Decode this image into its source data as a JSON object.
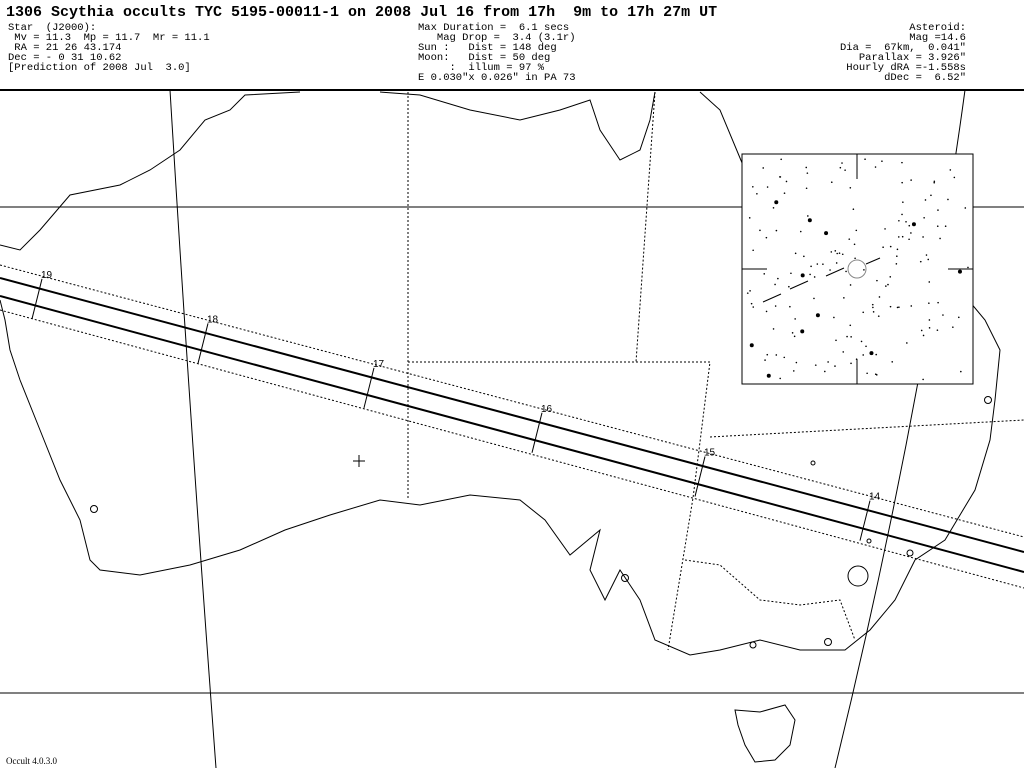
{
  "header": {
    "title": "1306 Scythia occults TYC 5195-00011-1 on 2008 Jul 16 from 17h  9m to 17h 27m UT",
    "star": [
      "Star  (J2000):",
      " Mv = 11.3  Mp = 11.7  Mr = 11.1",
      " RA = 21 26 43.174",
      "Dec = - 0 31 10.62",
      "[Prediction of 2008 Jul  3.0]"
    ],
    "event": [
      "Max Duration =  6.1 secs",
      "   Mag Drop =  3.4 (3.1r)",
      "Sun :   Dist = 148 deg",
      "Moon:   Dist = 50 deg",
      "     :  illum = 97 %",
      "E 0.030\"x 0.026\" in PA 73"
    ],
    "asteroid": [
      "Asteroid:",
      "   Mag =14.6",
      "   Dia =  67km,  0.041\"",
      "Parallax = 3.926\"",
      "Hourly dRA =-1.558s",
      "dDec =  6.52\""
    ]
  },
  "path_labels": [
    "19",
    "18",
    "17",
    "16",
    "15",
    "14"
  ],
  "footer": "Occult 4.0.3.0"
}
